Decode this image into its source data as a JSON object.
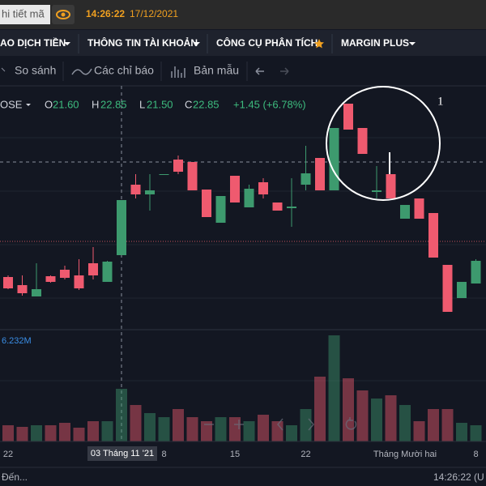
{
  "top_bar": {
    "search": "hi tiết mã",
    "time": "14:26:22",
    "date": "17/12/2021"
  },
  "menu": [
    "AO DỊCH TIỀN",
    "THÔNG TIN TÀI KHOẢN",
    "CÔNG CỤ PHÂN TÍCH",
    "MARGIN PLUS"
  ],
  "toolbar": [
    "So sánh",
    "Các chỉ báo",
    "Bản mẫu"
  ],
  "legend": {
    "symbol": "OSE",
    "open_label": "O",
    "open": "21.60",
    "high_label": "H",
    "high": "22.85",
    "low_label": "L",
    "low": "21.50",
    "close_label": "C",
    "close": "22.85",
    "change": "+1.45 (+6.78%)"
  },
  "volume_label": "6.232M",
  "annotation": "1",
  "crosshair_label": "03 Tháng 11 '21",
  "footer": {
    "status": "Đến...",
    "time": "14:26:22 (U"
  },
  "chart_data": {
    "type": "candlestick",
    "categories": [
      "22",
      null,
      null,
      null,
      null,
      null,
      null,
      null,
      null,
      null,
      null,
      "8",
      null,
      null,
      null,
      null,
      "15",
      null,
      null,
      null,
      null,
      "22",
      null,
      null,
      null,
      null,
      null,
      null,
      "Tháng Mười hai",
      null,
      null,
      null,
      null,
      "8"
    ],
    "open": [
      19.86,
      19.66,
      19.38,
      19.88,
      20.04,
      19.9,
      20.2,
      19.74,
      20.4,
      22.14,
      21.9,
      22.38,
      22.76,
      22.7,
      22.02,
      21.2,
      22.36,
      21.58,
      22.2,
      21.7,
      21.56,
      22.14,
      22.8,
      22.0,
      24.14,
      23.54,
      21.96,
      22.4,
      21.3,
      21.8,
      21.44,
      20.16,
      19.34,
      19.7
    ],
    "high": [
      19.9,
      19.9,
      20.2,
      19.9,
      20.14,
      20.3,
      20.6,
      20.26,
      21.76,
      22.4,
      22.4,
      22.4,
      22.86,
      22.7,
      22.02,
      21.86,
      22.36,
      22.14,
      22.3,
      21.7,
      22.3,
      23.1,
      22.8,
      23.54,
      24.14,
      23.54,
      22.6,
      22.4,
      21.64,
      21.8,
      21.44,
      20.16,
      19.74,
      20.3
    ],
    "low": [
      19.56,
      19.4,
      19.38,
      19.72,
      19.8,
      19.54,
      19.8,
      19.74,
      20.4,
      21.8,
      21.5,
      22.38,
      22.4,
      22.0,
      21.34,
      21.2,
      21.7,
      21.58,
      21.8,
      21.5,
      21.1,
      22.0,
      22.0,
      22.0,
      23.5,
      22.9,
      21.8,
      21.8,
      21.3,
      21.3,
      20.34,
      19.0,
      19.34,
      19.7
    ],
    "close": [
      19.58,
      19.46,
      19.56,
      19.74,
      19.84,
      19.58,
      19.9,
      20.24,
      21.76,
      21.9,
      22.0,
      22.4,
      22.46,
      22.0,
      21.34,
      21.86,
      21.7,
      22.04,
      21.9,
      21.5,
      21.6,
      22.42,
      22.0,
      23.54,
      23.5,
      22.9,
      22.0,
      21.8,
      21.64,
      21.3,
      20.34,
      19.0,
      19.74,
      20.26
    ],
    "volume": [
      0.8,
      0.72,
      0.8,
      0.8,
      0.92,
      0.68,
      1.0,
      1.0,
      2.6,
      1.8,
      1.4,
      1.2,
      1.6,
      1.2,
      1.0,
      1.2,
      1.2,
      1.0,
      1.32,
      1.0,
      0.8,
      1.6,
      3.2,
      5.24,
      3.12,
      2.52,
      2.12,
      2.28,
      1.8,
      1.0,
      1.6,
      1.6,
      0.92,
      0.8
    ],
    "ylim": [
      18.6,
      24.5
    ],
    "volume_lim": [
      0,
      5.4
    ],
    "up_color": "#3d9a6e",
    "down_color": "#ef5a6f"
  }
}
